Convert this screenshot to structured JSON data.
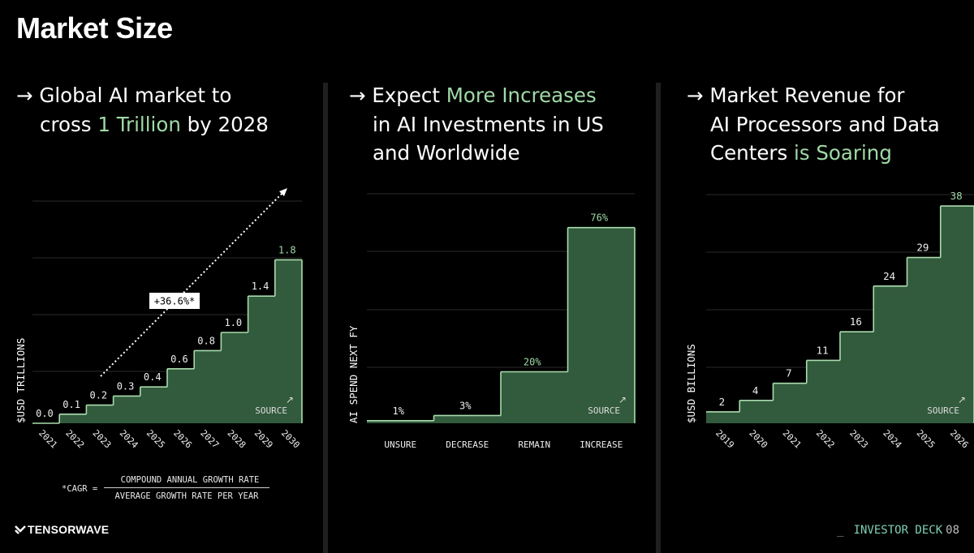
{
  "page": {
    "title": "Market Size",
    "logo": "TENSORWAVE",
    "footer_underscore": "_",
    "footer_label": "INVESTOR DECK",
    "footer_page": "08"
  },
  "colors": {
    "accent_text": "#9fd9a6",
    "bar_fill": "#325a3c",
    "bar_line": "#a9dcae",
    "grid": "#2a2a2a",
    "footer_accent": "#7fd0b8"
  },
  "panels": [
    {
      "arrow": "→",
      "heading_parts": [
        {
          "text": "Global AI market to",
          "hl": false,
          "br": true
        },
        {
          "text": "cross ",
          "hl": false
        },
        {
          "text": "1 Trillion",
          "hl": true
        },
        {
          "text": " by 2028",
          "hl": false
        }
      ]
    },
    {
      "arrow": "→",
      "heading_parts": [
        {
          "text": "Expect ",
          "hl": false
        },
        {
          "text": "More Increases",
          "hl": true,
          "br": true
        },
        {
          "text": "in AI Investments in US",
          "hl": false,
          "br": true
        },
        {
          "text": "and Worldwide",
          "hl": false
        }
      ]
    },
    {
      "arrow": "→",
      "heading_parts": [
        {
          "text": "Market Revenue for",
          "hl": false,
          "br": true
        },
        {
          "text": "AI Processors and Data",
          "hl": false,
          "br": true
        },
        {
          "text": "Centers ",
          "hl": false
        },
        {
          "text": "is Soaring",
          "hl": true
        }
      ]
    }
  ],
  "cagr_note": {
    "lhs": "*CAGR =",
    "numerator": "COMPOUND ANNUAL GROWTH RATE",
    "denominator": "AVERAGE GROWTH RATE PER YEAR"
  },
  "chart_data": [
    {
      "type": "area",
      "style": "step",
      "title": "Global AI market to cross 1 Trillion by 2028",
      "ylabel": "$USD TRILLIONS",
      "categories": [
        "2021",
        "2022",
        "2023",
        "2024",
        "2025",
        "2026",
        "2027",
        "2028",
        "2029",
        "2030"
      ],
      "values": [
        0.0,
        0.1,
        0.2,
        0.3,
        0.4,
        0.6,
        0.8,
        1.0,
        1.4,
        1.8
      ],
      "value_labels": [
        "0.0",
        "0.1",
        "0.2",
        "0.3",
        "0.4",
        "0.6",
        "0.8",
        "1.0",
        "1.4",
        "1.8"
      ],
      "ylim": [
        0,
        2.0
      ],
      "annotation": "+36.6%*",
      "source_label": "SOURCE",
      "source_arrow": "↗",
      "grid": true
    },
    {
      "type": "area",
      "style": "step",
      "title": "Expect More Increases in AI Investments in US and Worldwide",
      "ylabel": "AI SPEND NEXT FY",
      "categories": [
        "UNSURE",
        "DECREASE",
        "REMAIN",
        "INCREASE"
      ],
      "values": [
        1,
        3,
        20,
        76
      ],
      "value_labels": [
        "1%",
        "3%",
        "20%",
        "76%"
      ],
      "ylim": [
        0,
        80
      ],
      "source_label": "SOURCE",
      "source_arrow": "↗",
      "grid": true
    },
    {
      "type": "area",
      "style": "step",
      "title": "Market Revenue for AI Processors and Data Centers is Soaring",
      "ylabel": "$USD BILLIONS",
      "categories": [
        "2019",
        "2020",
        "2021",
        "2022",
        "2023",
        "2024",
        "2025",
        "2026"
      ],
      "values": [
        2,
        4,
        7,
        11,
        16,
        24,
        29,
        38
      ],
      "value_labels": [
        "2",
        "4",
        "7",
        "11",
        "16",
        "24",
        "29",
        "38"
      ],
      "ylim": [
        0,
        40
      ],
      "source_label": "SOURCE",
      "source_arrow": "↗",
      "grid": true
    }
  ]
}
